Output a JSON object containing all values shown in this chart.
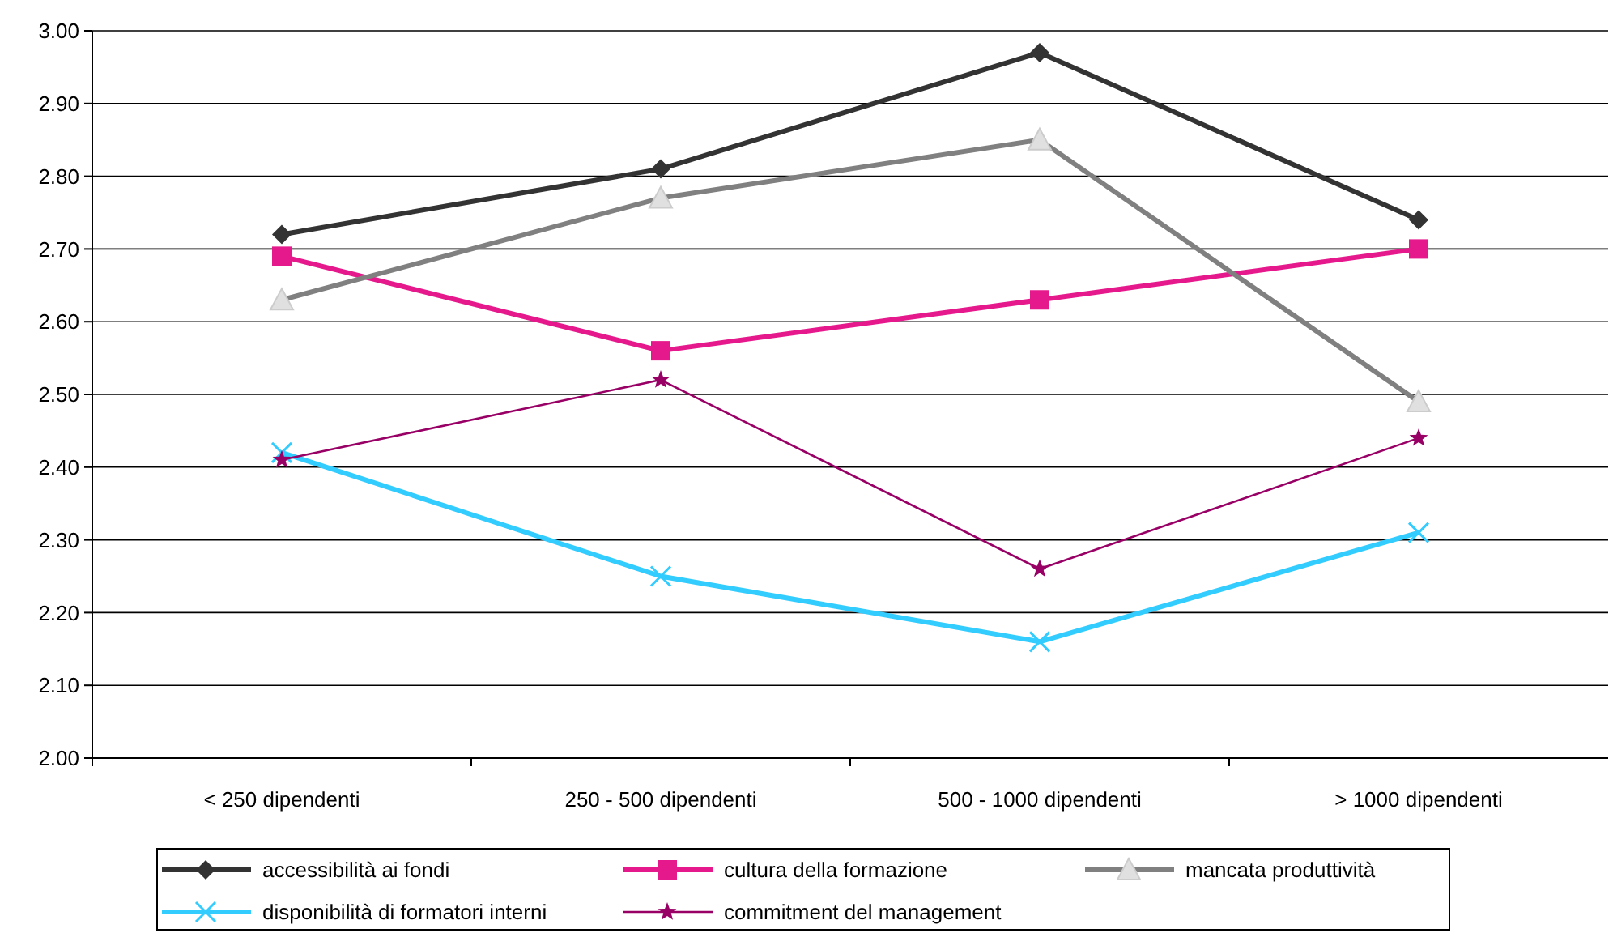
{
  "chart_data": {
    "type": "line",
    "categories": [
      "< 250 dipendenti",
      "250 - 500 dipendenti",
      "500 - 1000 dipendenti",
      "> 1000 dipendenti"
    ],
    "ylim": [
      2,
      3
    ],
    "yticks": [
      {
        "value": 2,
        "label": "2.00"
      },
      {
        "value": 2.1,
        "label": "2.10"
      },
      {
        "value": 2.2,
        "label": "2.20"
      },
      {
        "value": 2.3,
        "label": "2.30"
      },
      {
        "value": 2.4,
        "label": "2.40"
      },
      {
        "value": 2.5,
        "label": "2.50"
      },
      {
        "value": 2.6,
        "label": "2.60"
      },
      {
        "value": 2.7,
        "label": "2.70"
      },
      {
        "value": 2.8,
        "label": "2.80"
      },
      {
        "value": 2.9,
        "label": "2.90"
      },
      {
        "value": 3,
        "label": "3.00"
      }
    ],
    "grid": "y",
    "legend": "bottom",
    "series": [
      {
        "name": "accessibilità ai fondi",
        "color": "#333333",
        "marker": "diamond",
        "values": [
          2.72,
          2.81,
          2.97,
          2.74
        ]
      },
      {
        "name": "cultura della formazione",
        "color": "#e6198c",
        "marker": "square",
        "values": [
          2.69,
          2.56,
          2.63,
          2.7
        ]
      },
      {
        "name": "mancata produttività",
        "color": "#808080",
        "marker": "triangle",
        "values": [
          2.63,
          2.77,
          2.85,
          2.49
        ]
      },
      {
        "name": "disponibilità di formatori interni",
        "color": "#33ccff",
        "marker": "cross",
        "values": [
          2.42,
          2.25,
          2.16,
          2.31
        ]
      },
      {
        "name": "commitment del management",
        "color": "#990066",
        "marker": "star",
        "values": [
          2.41,
          2.52,
          2.26,
          2.44
        ]
      }
    ]
  }
}
